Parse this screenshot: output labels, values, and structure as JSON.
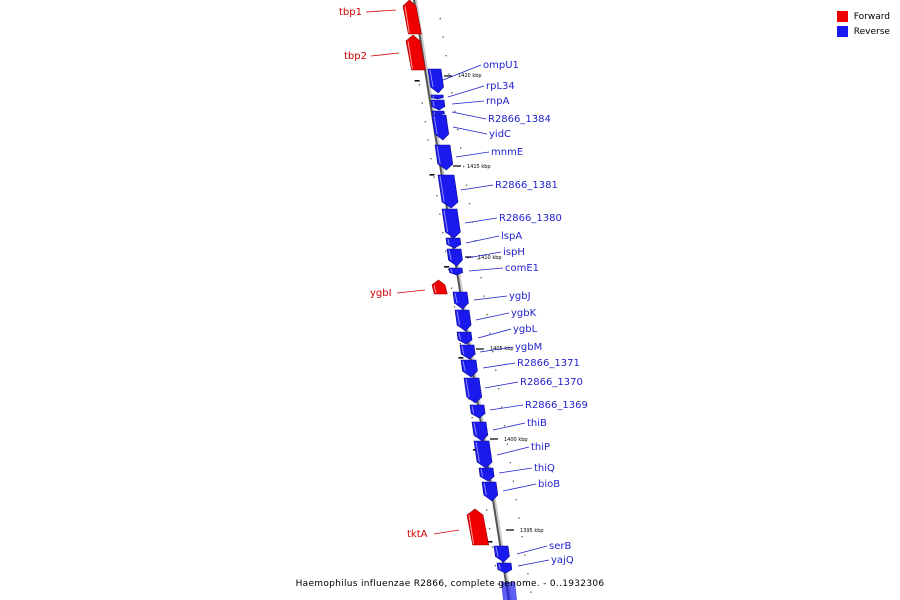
{
  "legend": {
    "forward_label": "Forward",
    "reverse_label": "Reverse",
    "forward_color": "#ee0000",
    "reverse_color": "#1a1aee"
  },
  "caption": "Haemophilus influenzae R2866, complete genome. - 0..1932306",
  "ticks": [
    {
      "label": "1420 kbp"
    },
    {
      "label": "1415 kbp"
    },
    {
      "label": "1410 kbp"
    },
    {
      "label": "1405 kbp"
    },
    {
      "label": "1400 kbp"
    },
    {
      "label": "1395 kbp"
    }
  ],
  "genes": [
    {
      "name": "tbp1",
      "strand": "forward"
    },
    {
      "name": "tbp2",
      "strand": "forward"
    },
    {
      "name": "ompU1",
      "strand": "reverse"
    },
    {
      "name": "rpL34",
      "strand": "reverse"
    },
    {
      "name": "rnpA",
      "strand": "reverse"
    },
    {
      "name": "R2866_1384",
      "strand": "reverse"
    },
    {
      "name": "yidC",
      "strand": "reverse"
    },
    {
      "name": "mnmE",
      "strand": "reverse"
    },
    {
      "name": "R2866_1381",
      "strand": "reverse"
    },
    {
      "name": "R2866_1380",
      "strand": "reverse"
    },
    {
      "name": "lspA",
      "strand": "reverse"
    },
    {
      "name": "ispH",
      "strand": "reverse"
    },
    {
      "name": "comE1",
      "strand": "reverse"
    },
    {
      "name": "ygbI",
      "strand": "forward"
    },
    {
      "name": "ygbJ",
      "strand": "reverse"
    },
    {
      "name": "ygbK",
      "strand": "reverse"
    },
    {
      "name": "ygbL",
      "strand": "reverse"
    },
    {
      "name": "ygbM",
      "strand": "reverse"
    },
    {
      "name": "R2866_1371",
      "strand": "reverse"
    },
    {
      "name": "R2866_1370",
      "strand": "reverse"
    },
    {
      "name": "R2866_1369",
      "strand": "reverse"
    },
    {
      "name": "thiB",
      "strand": "reverse"
    },
    {
      "name": "thiP",
      "strand": "reverse"
    },
    {
      "name": "thiQ",
      "strand": "reverse"
    },
    {
      "name": "bioB",
      "strand": "reverse"
    },
    {
      "name": "tktA",
      "strand": "forward"
    },
    {
      "name": "serB",
      "strand": "reverse"
    },
    {
      "name": "yajQ",
      "strand": "reverse"
    }
  ]
}
